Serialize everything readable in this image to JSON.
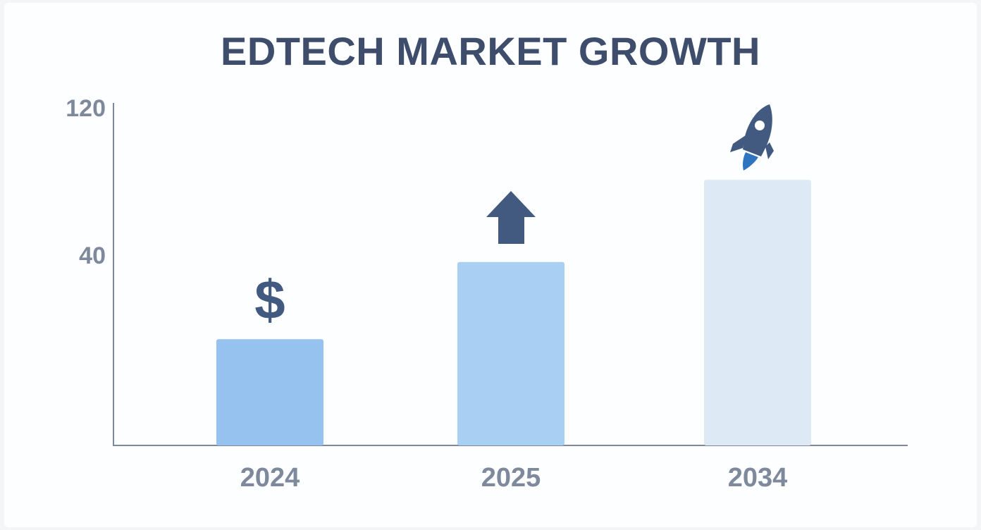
{
  "chart_data": {
    "type": "bar",
    "title": "EDTECH MARKET GROWTH",
    "xlabel": "",
    "ylabel": "",
    "categories": [
      "2024",
      "2025",
      "2034"
    ],
    "values": [
      22,
      38,
      55
    ],
    "y_tick_labels": [
      "120",
      "40"
    ],
    "grid": false,
    "legend": "none",
    "colors": [
      "#95c2ee",
      "#a9cff2",
      "#dde9f5"
    ],
    "axis_color": "#7d889b",
    "icon_color": "#435a80",
    "icons": [
      "dollar-sign-icon",
      "up-arrow-icon",
      "rocket-icon"
    ],
    "icon_glyphs": {
      "dollar": "$"
    }
  }
}
